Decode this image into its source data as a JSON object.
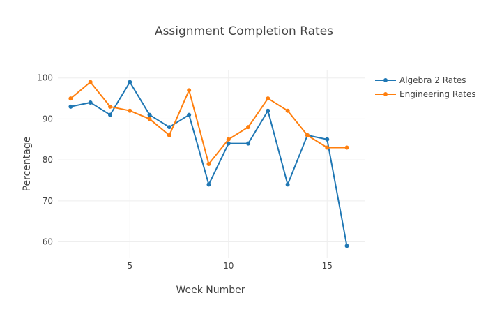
{
  "chart_data": {
    "type": "line",
    "title": "Assignment Completion Rates",
    "xlabel": "Week Number",
    "ylabel": "Percentage",
    "x": [
      2,
      3,
      4,
      5,
      6,
      7,
      8,
      9,
      10,
      11,
      12,
      13,
      14,
      15,
      16
    ],
    "series": [
      {
        "name": "Algebra 2 Rates",
        "color": "#1f77b4",
        "values": [
          93,
          94,
          91,
          99,
          91,
          88,
          91,
          74,
          84,
          84,
          92,
          74,
          86,
          85,
          59
        ]
      },
      {
        "name": "Engineering Rates",
        "color": "#ff7f0e",
        "values": [
          95,
          99,
          93,
          92,
          90,
          86,
          97,
          79,
          85,
          88,
          95,
          92,
          86,
          83,
          83
        ]
      }
    ],
    "xlim": [
      1.35,
      16.9
    ],
    "ylim": [
      56,
      102
    ],
    "xticks": [
      "5",
      "10",
      "15"
    ],
    "yticks": [
      "60",
      "70",
      "80",
      "90",
      "100"
    ],
    "grid": true,
    "legend": "top-right"
  }
}
